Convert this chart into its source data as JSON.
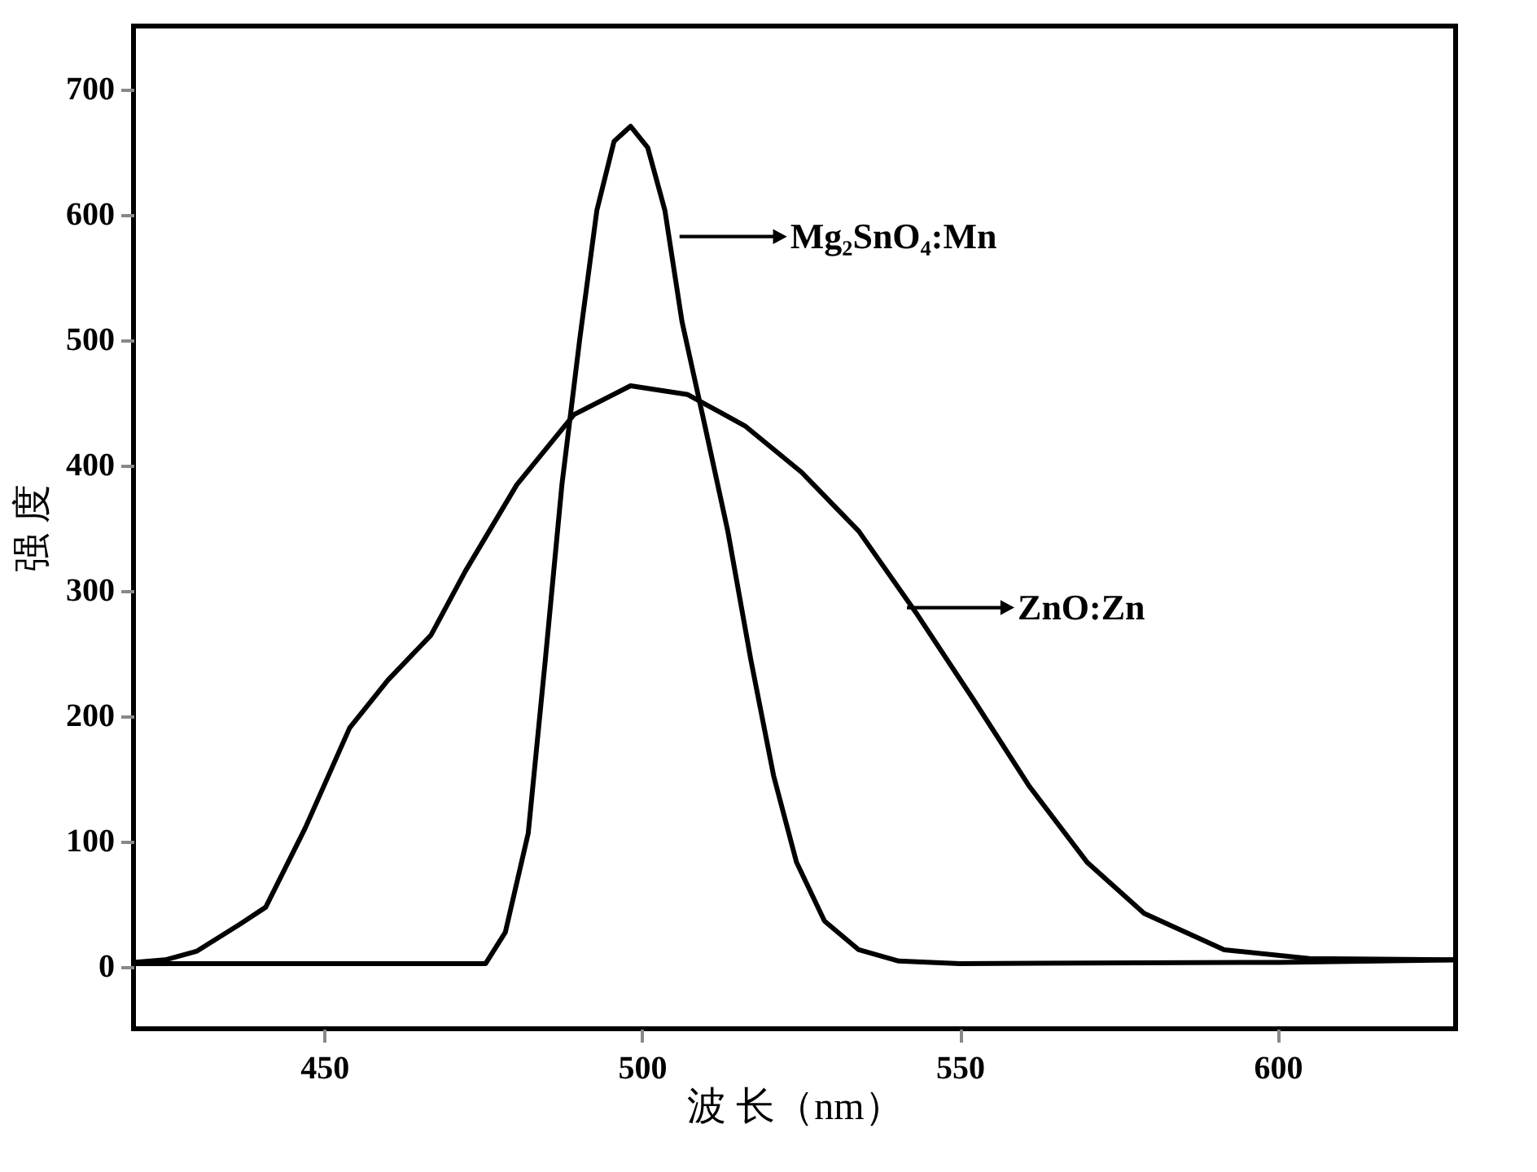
{
  "chart_data": {
    "type": "line",
    "xlabel": "波 长（nm）",
    "ylabel": "强 度",
    "xlim": [
      420,
      628
    ],
    "xticks": [
      450,
      500,
      550,
      600
    ],
    "ylim": [
      -50,
      750
    ],
    "yticks": [
      0,
      100,
      200,
      300,
      400,
      500,
      600,
      700
    ],
    "grid": false,
    "legend": false,
    "marker": "none",
    "line_style": "solid",
    "series": [
      {
        "color": "#000000",
        "x": [
          420,
          475.4,
          478.5,
          482.1,
          484.8,
          487.4,
          490.2,
          492.9,
          495.6,
          498.2,
          500.9,
          503.6,
          506.3,
          509.9,
          513.5,
          517.1,
          520.7,
          524.3,
          528.7,
          534.1,
          540.4,
          550,
          600,
          628
        ],
        "values": [
          2,
          2,
          27,
          106,
          245,
          384,
          500,
          603,
          658,
          670,
          653,
          603,
          514,
          431,
          347,
          245,
          152,
          83,
          36,
          13,
          4,
          2,
          3,
          5
        ]
      },
      {
        "color": "#000000",
        "x": [
          420,
          425,
          430,
          436.6,
          440.8,
          447,
          454,
          460,
          466.8,
          472.2,
          480.3,
          489.3,
          498.2,
          507.2,
          516.2,
          525.1,
          534.1,
          543.1,
          552.1,
          561,
          570,
          579,
          591.6,
          605,
          628
        ],
        "values": [
          3,
          5,
          12,
          33,
          47,
          110,
          190,
          228,
          264,
          315,
          384,
          440,
          463,
          456,
          431,
          394,
          347,
          282,
          213,
          143,
          83,
          42,
          13,
          6,
          5
        ]
      }
    ],
    "annotations": [
      "Mg₂SnO₄:Mn",
      "ZnO:Zn"
    ]
  }
}
